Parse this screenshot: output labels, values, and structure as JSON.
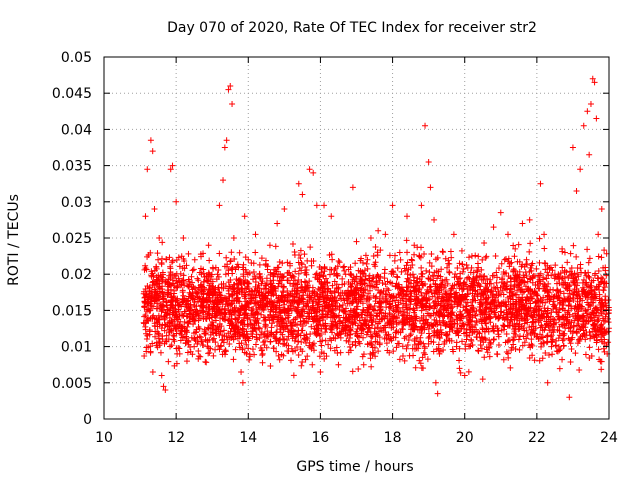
{
  "chart_data": {
    "type": "scatter",
    "title": "Day 070 of 2020, Rate Of TEC Index for receiver str2",
    "xlabel": "GPS time / hours",
    "ylabel": "ROTI / TECUs",
    "xlim": [
      10,
      24
    ],
    "ylim": [
      0,
      0.05
    ],
    "xticks": [
      10,
      12,
      14,
      16,
      18,
      20,
      22,
      24
    ],
    "yticks": [
      0,
      0.005,
      0.01,
      0.015,
      0.02,
      0.025,
      0.03,
      0.035,
      0.04,
      0.045,
      0.05
    ],
    "ytick_labels": [
      "0",
      "0.005",
      "0.01",
      "0.015",
      "0.02",
      "0.025",
      "0.03",
      "0.035",
      "0.04",
      "0.045",
      "0.05"
    ],
    "grid": true,
    "marker": "+",
    "color": "#ff0000",
    "series": [
      {
        "name": "ROTI",
        "points": [
          [
            11.15,
            0.028
          ],
          [
            11.2,
            0.0345
          ],
          [
            11.3,
            0.0385
          ],
          [
            11.35,
            0.037
          ],
          [
            11.4,
            0.029
          ],
          [
            11.5,
            0.022
          ],
          [
            11.6,
            0.006
          ],
          [
            11.65,
            0.0045
          ],
          [
            11.7,
            0.004
          ],
          [
            11.8,
            0.012
          ],
          [
            11.85,
            0.0345
          ],
          [
            11.9,
            0.035
          ],
          [
            12.0,
            0.03
          ],
          [
            12.1,
            0.009
          ],
          [
            12.2,
            0.025
          ],
          [
            12.3,
            0.008
          ],
          [
            12.5,
            0.0165
          ],
          [
            12.7,
            0.02
          ],
          [
            12.9,
            0.024
          ],
          [
            13.0,
            0.012
          ],
          [
            13.2,
            0.0295
          ],
          [
            13.3,
            0.033
          ],
          [
            13.35,
            0.0375
          ],
          [
            13.4,
            0.0385
          ],
          [
            13.45,
            0.0455
          ],
          [
            13.5,
            0.046
          ],
          [
            13.55,
            0.0435
          ],
          [
            13.6,
            0.025
          ],
          [
            13.7,
            0.012
          ],
          [
            13.8,
            0.0065
          ],
          [
            13.85,
            0.005
          ],
          [
            13.9,
            0.028
          ],
          [
            14.0,
            0.022
          ],
          [
            14.2,
            0.0255
          ],
          [
            14.4,
            0.009
          ],
          [
            14.6,
            0.024
          ],
          [
            14.8,
            0.027
          ],
          [
            15.0,
            0.029
          ],
          [
            15.2,
            0.0195
          ],
          [
            15.4,
            0.0325
          ],
          [
            15.5,
            0.031
          ],
          [
            15.6,
            0.0105
          ],
          [
            15.7,
            0.0345
          ],
          [
            15.8,
            0.034
          ],
          [
            15.9,
            0.0295
          ],
          [
            16.0,
            0.0065
          ],
          [
            16.1,
            0.0295
          ],
          [
            16.3,
            0.028
          ],
          [
            16.5,
            0.0075
          ],
          [
            16.7,
            0.02
          ],
          [
            16.9,
            0.032
          ],
          [
            17.0,
            0.0245
          ],
          [
            17.2,
            0.0075
          ],
          [
            17.4,
            0.025
          ],
          [
            17.6,
            0.026
          ],
          [
            17.8,
            0.0255
          ],
          [
            18.0,
            0.0295
          ],
          [
            18.2,
            0.023
          ],
          [
            18.4,
            0.028
          ],
          [
            18.6,
            0.024
          ],
          [
            18.8,
            0.0295
          ],
          [
            18.9,
            0.0405
          ],
          [
            19.0,
            0.0355
          ],
          [
            19.05,
            0.032
          ],
          [
            19.15,
            0.0275
          ],
          [
            19.2,
            0.005
          ],
          [
            19.25,
            0.0035
          ],
          [
            19.3,
            0.009
          ],
          [
            19.5,
            0.0165
          ],
          [
            19.7,
            0.0255
          ],
          [
            19.9,
            0.0145
          ],
          [
            20.0,
            0.006
          ],
          [
            20.2,
            0.0225
          ],
          [
            20.4,
            0.0185
          ],
          [
            20.5,
            0.0055
          ],
          [
            20.6,
            0.014
          ],
          [
            20.8,
            0.0265
          ],
          [
            21.0,
            0.0285
          ],
          [
            21.2,
            0.0255
          ],
          [
            21.4,
            0.0235
          ],
          [
            21.6,
            0.027
          ],
          [
            21.8,
            0.0275
          ],
          [
            22.0,
            0.017
          ],
          [
            22.1,
            0.0325
          ],
          [
            22.2,
            0.0255
          ],
          [
            22.3,
            0.005
          ],
          [
            22.5,
            0.02
          ],
          [
            22.7,
            0.0235
          ],
          [
            22.9,
            0.003
          ],
          [
            23.0,
            0.0375
          ],
          [
            23.1,
            0.0315
          ],
          [
            23.2,
            0.0345
          ],
          [
            23.3,
            0.0405
          ],
          [
            23.4,
            0.0425
          ],
          [
            23.45,
            0.0365
          ],
          [
            23.5,
            0.0435
          ],
          [
            23.55,
            0.047
          ],
          [
            23.6,
            0.0465
          ],
          [
            23.65,
            0.0415
          ],
          [
            23.7,
            0.0255
          ],
          [
            23.8,
            0.029
          ],
          [
            23.9,
            0.0205
          ],
          [
            23.95,
            0.009
          ]
        ],
        "density_bands": [
          {
            "x": [
              11.1,
              24.0
            ],
            "y_low": 0.006,
            "y_high": 0.025
          }
        ]
      }
    ]
  }
}
